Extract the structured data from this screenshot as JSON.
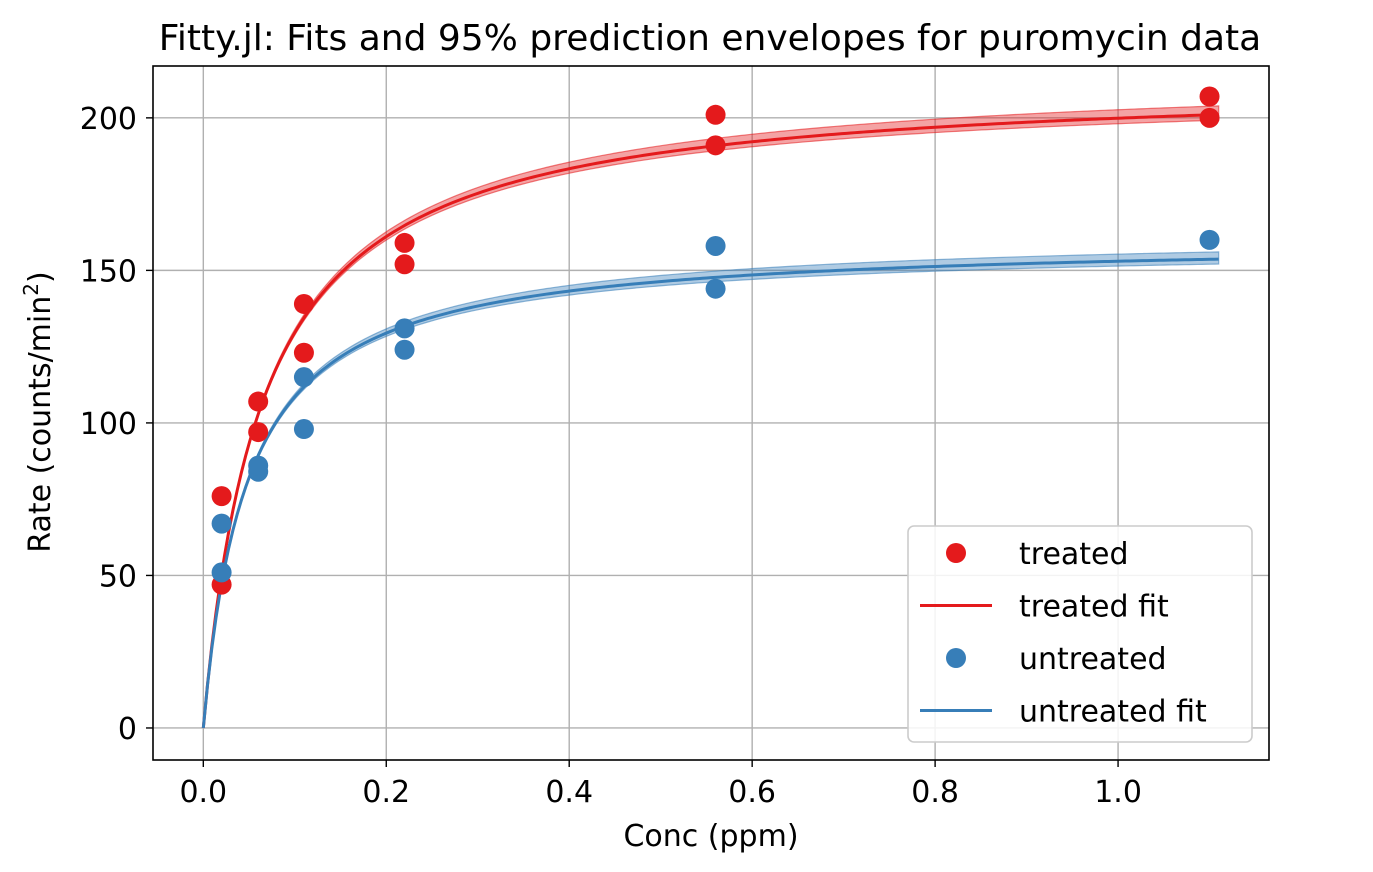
{
  "chart_data": {
    "type": "scatter",
    "title": "Fitty.jl: Fits and 95% prediction envelopes for puromycin data",
    "xlabel": "Conc (ppm)",
    "ylabel_main": "Rate (counts/min",
    "ylabel_sup": "2",
    "ylabel_close": ")",
    "xlim": [
      -0.055,
      1.165
    ],
    "ylim": [
      -10.5,
      217
    ],
    "xticks": [
      0.0,
      0.2,
      0.4,
      0.6,
      0.8,
      1.0
    ],
    "xtick_labels": [
      "0.0",
      "0.2",
      "0.4",
      "0.6",
      "0.8",
      "1.0"
    ],
    "yticks": [
      0,
      50,
      100,
      150,
      200
    ],
    "ytick_labels": [
      "0",
      "50",
      "100",
      "150",
      "200"
    ],
    "grid": true,
    "legend_position": "lower-right",
    "series": [
      {
        "name": "treated",
        "kind": "points",
        "color": "#e41a1c",
        "x": [
          0.02,
          0.02,
          0.06,
          0.06,
          0.11,
          0.11,
          0.22,
          0.22,
          0.56,
          0.56,
          1.1,
          1.1
        ],
        "y": [
          76,
          47,
          97,
          107,
          123,
          139,
          159,
          152,
          191,
          201,
          207,
          200
        ]
      },
      {
        "name": "treated fit",
        "kind": "line",
        "color": "#e41a1c",
        "vmax": 212.7,
        "km": 0.0641,
        "band_lower": [
          0,
          201.5
        ],
        "band_upper": [
          0,
          204.5
        ],
        "x_range": [
          0.0,
          1.11
        ]
      },
      {
        "name": "untreated",
        "kind": "points",
        "color": "#377eb8",
        "x": [
          0.02,
          0.02,
          0.06,
          0.06,
          0.11,
          0.11,
          0.22,
          0.22,
          0.56,
          0.56,
          1.1
        ],
        "y": [
          67,
          51,
          84,
          86,
          98,
          115,
          131,
          124,
          144,
          158,
          160
        ]
      },
      {
        "name": "untreated fit",
        "kind": "line",
        "color": "#377eb8",
        "vmax": 160.3,
        "km": 0.0477,
        "x_range": [
          0.0,
          1.11
        ]
      }
    ]
  }
}
